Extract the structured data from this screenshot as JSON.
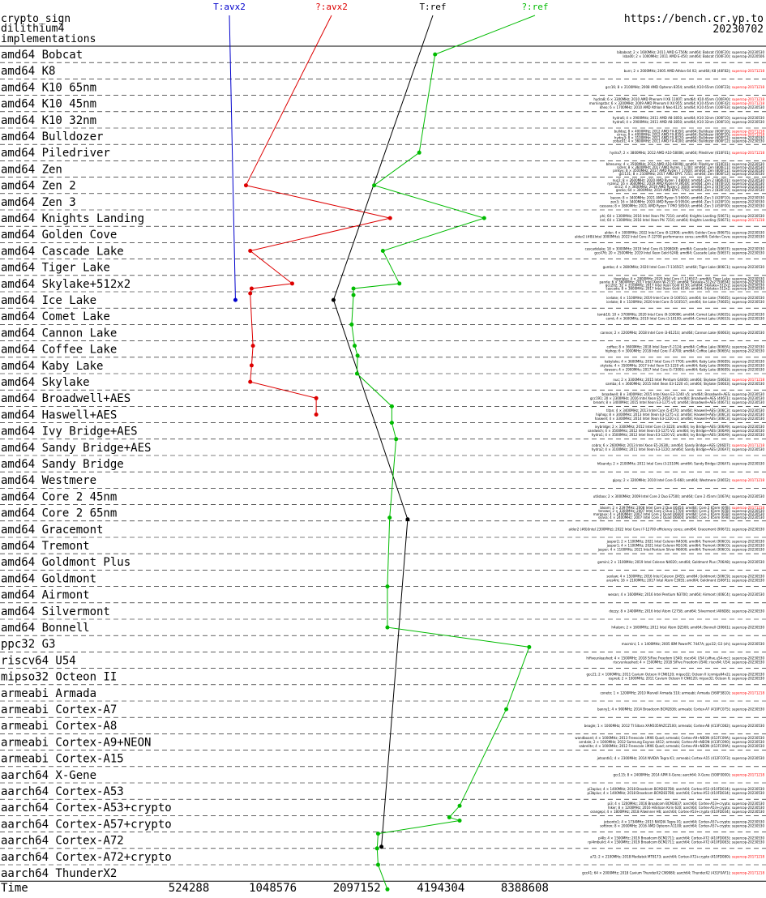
{
  "header": {
    "left_lines": [
      "crypto_sign",
      "dilithium4",
      "implementations"
    ],
    "right_lines": [
      "https://bench.cr.yp.to",
      "20230702"
    ]
  },
  "chart_data": {
    "type": "line",
    "xlabel": "Time",
    "x_scale": "log2",
    "x_ticks": [
      524288,
      1048576,
      2097152,
      4194304,
      8388608
    ],
    "x_tick_labels": [
      "524288",
      "1048576",
      "2097152",
      "4194304",
      "8388608"
    ],
    "categories": [
      "amd64 Bobcat",
      "amd64 K8",
      "amd64 K10 65nm",
      "amd64 K10 45nm",
      "amd64 K10 32nm",
      "amd64 Bulldozer",
      "amd64 Piledriver",
      "amd64 Zen",
      "amd64 Zen 2",
      "amd64 Zen 3",
      "amd64 Knights Landing",
      "amd64 Golden Cove",
      "amd64 Cascade Lake",
      "amd64 Tiger Lake",
      "amd64 Skylake+512x2",
      "amd64 Ice Lake",
      "amd64 Comet Lake",
      "amd64 Cannon Lake",
      "amd64 Coffee Lake",
      "amd64 Kaby Lake",
      "amd64 Skylake",
      "amd64 Broadwell+AES",
      "amd64 Haswell+AES",
      "amd64 Ivy Bridge+AES",
      "amd64 Sandy Bridge+AES",
      "amd64 Sandy Bridge",
      "amd64 Westmere",
      "amd64 Core 2 45nm",
      "amd64 Core 2 65nm",
      "amd64 Gracemont",
      "amd64 Tremont",
      "amd64 Goldmont Plus",
      "amd64 Goldmont",
      "amd64 Airmont",
      "amd64 Silvermont",
      "amd64 Bonnell",
      "ppc32 G3",
      "riscv64 U54",
      "mipso32 Octeon II",
      "armeabi Armada",
      "armeabi Cortex-A7",
      "armeabi Cortex-A8",
      "armeabi Cortex-A9+NEON",
      "armeabi Cortex-A15",
      "aarch64 X-Gene",
      "aarch64 Cortex-A53",
      "aarch64 Cortex-A53+crypto",
      "aarch64 Cortex-A57+crypto",
      "aarch64 Cortex-A72",
      "aarch64 Cortex-A72+crypto",
      "aarch64 ThunderX2"
    ],
    "series": [
      {
        "name": "T:avx2",
        "color": "#0000cc",
        "points": [
          {
            "row": 15,
            "x": 770000
          }
        ]
      },
      {
        "name": "?:avx2",
        "color": "#dd0000",
        "points": [
          {
            "row": 8,
            "x": 840000
          },
          {
            "row": 10,
            "x": 2760000
          },
          {
            "row": 12,
            "x": 870000
          },
          {
            "row": 14,
            "x": 1230000
          },
          {
            "row": 14.3,
            "x": 880000
          },
          {
            "row": 14.6,
            "x": 870000
          },
          {
            "row": 17.8,
            "x": 890000
          },
          {
            "row": 19,
            "x": 880000
          },
          {
            "row": 20,
            "x": 870000
          },
          {
            "row": 21,
            "x": 1500000
          },
          {
            "row": 22,
            "x": 1500000
          }
        ]
      },
      {
        "name": "T:ref",
        "color": "#000000",
        "points": [
          {
            "row": 15,
            "x": 1730000
          },
          {
            "row": 28.4,
            "x": 3190000
          },
          {
            "row": 48.4,
            "x": 2570000
          }
        ]
      },
      {
        "name": "?:ref",
        "color": "#00bb00",
        "points": [
          {
            "row": 0,
            "x": 4000000
          },
          {
            "row": 6,
            "x": 3510000
          },
          {
            "row": 8,
            "x": 2420000
          },
          {
            "row": 10,
            "x": 6000000
          },
          {
            "row": 12,
            "x": 2600000
          },
          {
            "row": 14,
            "x": 2980000
          },
          {
            "row": 14.3,
            "x": 2040000
          },
          {
            "row": 14.7,
            "x": 2040000
          },
          {
            "row": 16.5,
            "x": 2010000
          },
          {
            "row": 17.8,
            "x": 2060000
          },
          {
            "row": 18.4,
            "x": 2110000
          },
          {
            "row": 19.5,
            "x": 2100000
          },
          {
            "row": 21.5,
            "x": 2800000
          },
          {
            "row": 22.5,
            "x": 2800000
          },
          {
            "row": 23.5,
            "x": 2900000
          },
          {
            "row": 28.3,
            "x": 2750000
          },
          {
            "row": 32.5,
            "x": 2700000
          },
          {
            "row": 35,
            "x": 2700000
          },
          {
            "row": 36.2,
            "x": 8700000
          },
          {
            "row": 40,
            "x": 7200000
          },
          {
            "row": 45.9,
            "x": 4900000
          },
          {
            "row": 46.6,
            "x": 4500000
          },
          {
            "row": 46.8,
            "x": 4900000
          },
          {
            "row": 47.6,
            "x": 2500000
          },
          {
            "row": 48.5,
            "x": 2480000
          },
          {
            "row": 49.5,
            "x": 2500000
          },
          {
            "row": 51,
            "x": 2700000
          }
        ]
      }
    ]
  },
  "machines": [
    {
      "row": 0,
      "lines": [
        "bibabsat; 2 × 1600MHz; 2011 AMD G-T56N; amd64; Bobcat (500F20); supercop-20230530",
        "lsba00; 2 × 1000MHz; 2011 AMD E-450; amd64; Bobcat (500F20); supercop-20220506"
      ]
    },
    {
      "row": 1,
      "lines": [
        "burn; 2 × 2000MHz; 2005 AMD Athlon 64 X2; amd64; K8 (40F82); supercop-20171218"
      ]
    },
    {
      "row": 2,
      "lines": [
        "gcc16; 8 × 2100MHz; 2008 AMD Opteron 8354; amd64; K10 65nm (100F23); supercop-20171218"
      ]
    },
    {
      "row": 3,
      "lines": [
        "hydra8; 6 × 3300MHz; 2010 AMD Phenom II X6 1100T; amd64; K10 45nm (100FA0); supercop-20171218",
        "morningstar; 6 × 3200MHz; 2009 AMD Phenom II X4 955; amd64; K10 45nm (100F42); supercop-20171218",
        "kheo; 6 × 1700MHz; 2010 AMD Athlon II Neo K125; amd64; K10 45nm (100F63); supercop-20230530"
      ]
    },
    {
      "row": 4,
      "lines": [
        "hydra6; 4 × 2900MHz; 2011 AMD A8-3850; amd64; K10 32nm (300F10); supercop-20230530",
        "hydra6; 4 × 2900MHz; 2011 AMD A8-3850; amd64; K10 32nm (300F10); supercop-20230530"
      ]
    },
    {
      "row": 5,
      "lines": [
        "bulldoz; 8 × 4000MHz; 2012 AMD FX-8350; amd64; Bulldozer (600F20); supercop-20171218",
        "cirrus; 8 × 4000MHz; 2012 AMD FX-8350; amd64; Bulldozer (600F20); supercop-20171218",
        "hydra3; 8 × 3100MHz; 2011 AMD FX-8120; amd64; Bulldozer (600F12); supercop-20230530",
        "zotac01; 4 × 3600MHz; 2011 AMD FX-4100; amd64; Bulldozer (600F12); supercop-20230530"
      ]
    },
    {
      "row": 6,
      "lines": [
        "hydra7; 2 × 3800MHz; 2012 AMD A10-5800K; amd64; Piledriver (610F01); supercop-20171218"
      ]
    },
    {
      "row": 7,
      "lines": [
        "bitesurey; 4 × 3500MHz; 2012 AMD A10-6800K; amd64; Piledriver (610F01); supercop-20230530",
        "ryzen; 8 × 3600MHz; 2017 AMD Ryzen 7 1700; amd64; Zen (800F11); supercop-20230530",
        "pinkyy; 8 × 3500MHz; 2017 AMD Ryzen 7 1700X; amd64; Zen (800F11); supercop-20230530",
        "gcc131; 8 × 2100MHz; 2017 AMD EPYC 7251; amd64; Zen (800F12); supercop-20230530"
      ]
    },
    {
      "row": 8,
      "lines": [
        "nuc2; 8 × 2600MHz; 2020 AMD Ryzen 7 4800U; amd64; Zen 2 (860F01); supercop-20230530",
        "ryzen2; 16 × 3600MHz; 2019 AMD Ryzen 9 3950X; amd64; Zen 2 (870F10); supercop-20230530",
        "sicc2; 4 × 3600MHz; 2019 AMD Ryzen 5 3600; amd64; Zen 2 (870F10); supercop-20230530",
        "gecko; 64 × 3000MHz; 2019 AMD EPYC 7702; amd64; Zen 2 (830F10); supercop-20230530"
      ]
    },
    {
      "row": 9,
      "lines": [
        "bacon; 8 × 3400MHz; 2021 AMD Ryzen 5 5600X; amd64; Zen 3 (A20F10); supercop-20230530",
        "zen3; 16 × 3400MHz; 2020 AMD Ryzen 9 5950X; amd64; Zen 3 (A20F10); supercop-20230530",
        "cassava; 8 × 3800MHz; 2021 AMD Ryzen 7 PRO 5850U; amd64; Zen 3 (A50F00); supercop-20230530"
      ]
    },
    {
      "row": 10,
      "lines": [
        "phi; 64 × 1300MHz; 2016 Intel Xeon Phi 7210; amd64; Knights Landing (50671); supercop-20230530",
        "knl; 64 × 1300MHz; 2016 Intel Xeon Phi 7210; amd64; Knights Landing (50671); supercop-20171218"
      ]
    },
    {
      "row": 11,
      "lines": [
        "alder; 4 × 3000MHz; 2022 Intel Core i9-12900; amd64; Golden Cove (90675); supercop-20230530",
        "alder2 (#8)(Intel 3000MHz); 2022 Intel Core i7-12700 performance cores; amd64; Golden Cove; supercop-20230530"
      ]
    },
    {
      "row": 12,
      "lines": [
        "cascadelake; 18 × 3000MHz; 2019 Intel Core i9-10980XE; amd64; Cascade Lake (50657); supercop-20230530",
        "gcc476; 20 × 2500MHz; 2019 Intel Xeon Gold 6248; amd64; Cascade Lake (50657); supercop-20230530"
      ]
    },
    {
      "row": 13,
      "lines": [
        "gumbo; 4 × 2800MHz; 2020 Intel Core i7-1165G7; amd64; Tiger Lake (806C1); supercop-20230530"
      ]
    },
    {
      "row": 14,
      "lines": [
        "tigerlake; 4 × 2800MHz; 2020 Intel Core i7-1165G7; amd64; Tiger Lake; supercop-20230530",
        "panda; 6 × 3600MHz; 2017 Intel Xeon W-2133; amd64; Skylake+512x2 (50654); supercop-20230530",
        "gcc202; 32 × 2100MHz; 2017 Intel Xeon Gold 6130; amd64; Skylake+512x2; supercop-20230530",
        "cascade; 8 × 3600MHz; 2017 Intel Xeon Gold 6144; amd64; Skylake+512x2; supercop-20230530"
      ]
    },
    {
      "row": 15,
      "lines": [
        "icelake; 4 × 1100MHz; 2019 Intel Core i3-1005G1; amd64; Ice Lake (706E5); supercop-20230530",
        "icelake; 8 × 1100MHz; 2020 Intel Core i5-1035G7; amd64; Ice Lake (706E5); supercop-20230530"
      ]
    },
    {
      "row": 16,
      "lines": [
        "tomb10; 10 × 3700MHz; 2020 Intel Core i9-10900K; amd64; Comet Lake (A0655); supercop-20230530",
        "comt; 4 × 3600MHz; 2019 Intel Core i3-10100; amd64; Comet Lake (A0653); supercop-20230530"
      ]
    },
    {
      "row": 17,
      "lines": [
        "cannon; 2 × 2200MHz; 2018 Intel Core i3-8121U; amd64; Cannon Lake (60663); supercop-20230530"
      ]
    },
    {
      "row": 18,
      "lines": [
        "coffee; 8 × 3600MHz; 2018 Intel Xeon E-2124; amd64; Coffee Lake (906EA); supercop-20230530",
        "hiphop; 6 × 3000MHz; 2018 Intel Core i7-8700; amd64; Coffee Lake (906EA); supercop-20230530"
      ]
    },
    {
      "row": 19,
      "lines": [
        "kabylake; 4 × 3600MHz; 2017 Intel Core i7-7700; amd64; Kaby Lake (906E9); supercop-20230530",
        "skylake; 4 × 3500MHz; 2017 Intel Xeon E3-1220 v6; amd64; Kaby Lake (906E9); supercop-20230530",
        "dawson; 4 × 2900MHz; 2017 Intel Core i5-7300U; amd64; Kaby Lake (806E9); supercop-20230530"
      ]
    },
    {
      "row": 20,
      "lines": [
        "nuc; 2 × 3300MHz; 2015 Intel Pentium G4400; amd64; Skylake (506E3); supercop-20171218",
        "samba; 4 × 3600MHz; 2015 Intel Xeon E3-1220 v5; amd64; Skylake (506E3); supercop-20230530"
      ]
    },
    {
      "row": 21,
      "lines": [
        "broadwell; 8 × 3400MHz; 2015 Intel Xeon E3-1240 v5; amd64; Broadwell+AES; supercop-20230530",
        "gcc191; 20 × 2300MHz; 2016 Intel Xeon E5-2650 v4; amd64; Broadwell+AES (406F1); supercop-20230530",
        "bream; 8 × 3400MHz; 2015 Intel Xeon E3-1275 v4; amd64; Broadwell+AES (40671); supercop-20230530"
      ]
    },
    {
      "row": 22,
      "lines": [
        "titan; 4 × 3400MHz; 2013 Intel Core i5-4570; amd64; Haswell+AES (306C3); supercop-20230530",
        "hiphop; 8 × 3400MHz; 2013 Intel Xeon E3-1275 v3; amd64; Haswell+AES (306C3); supercop-20230530",
        "haswell; 4 × 3300MHz; 2014 Intel Xeon E3-1220 v3; amd64; Haswell+AES (306C3); supercop-20230530"
      ]
    },
    {
      "row": 23,
      "lines": [
        "ivybridge; 2 × 3300MHz; 2012 Intel Core i3-3220; amd64; Ivy Bridge+AES (306A9); supercop-20230530",
        "sandwich; 4 × 3500MHz; 2012 Intel Xeon E3-1275 V2; amd64; Ivy Bridge+AES (306A9); supercop-20230530",
        "hydra1; 4 × 3500MHz; 2012 Intel Xeon E3-1220 V2; amd64; Ivy Bridge+AES (306A9); supercop-20230530"
      ]
    },
    {
      "row": 24,
      "lines": [
        "cobra; 6 × 2600MHz; 2013 Intel Xeon E5-2630L; amd64; Sandy Bridge+AES (206D7); supercop-20171218",
        "hydra2; 4 × 3100MHz; 2011 Intel Xeon E3-1220; amd64; Sandy Bridge+AES (206A7); supercop-20230530"
      ]
    },
    {
      "row": 25,
      "lines": [
        "h6sandy; 2 × 2100MHz; 2011 Intel Core i3-2310M; amd64; Sandy Bridge (206A7); supercop-20230530"
      ]
    },
    {
      "row": 26,
      "lines": [
        "gipsy; 2 × 3200MHz; 2010 Intel Core i5-660; amd64; Westmere (20652); supercop-20171218"
      ]
    },
    {
      "row": 27,
      "lines": [
        "utilsbox; 2 × 3000MHz; 2009 Intel Core 2 Duo E7500; amd64; Core 2 45nm (1067A); supercop-20230530"
      ]
    },
    {
      "row": 28,
      "lines": [
        "bloom; 2 × 2397MHz; 2008 Intel Core 2 Duo E6450; amd64; Core 2 65nm (6FB); supercop-20171218",
        "tenswe; 2 × 3300MHz; 2007 Intel Core 2 Duo E7700; amd64; Core 2 65nm (6FB); supercop-20230530",
        "margaux; 4 × 2400MHz; 2007 Intel Core 2 Quad Q6600; amd64; Core 2 65nm (6FB); supercop-20230530",
        "sylvia; 4 × 2400MHz; 2007 Intel Core 2 Quad Q6600; amd64; Core 2 65nm (6FB); supercop-20230530"
      ]
    },
    {
      "row": 29,
      "lines": [
        "alder2 (#8)(Intel 2300MHz); 2022 Intel Core i7-12700 efficiency cores; amd64; Gracemont (90672); supercop-20230530"
      ]
    },
    {
      "row": 30,
      "lines": [
        "jasper2; 2 × 1100MHz; 2021 Intel Celeron N4500; amd64; Tremont (906C0); supercop-20230530",
        "jasper1; 4 × 1100MHz; 2021 Intel Celeron N5100; amd64; Tremont (906C0); supercop-20230530",
        "jasper; 4 × 1100MHz; 2021 Intel Pentium Silver N6000; amd64; Tremont (906C0); supercop-20230530"
      ]
    },
    {
      "row": 31,
      "lines": [
        "gemini; 2 × 1100MHz; 2019 Intel Celeron N4020; amd64; Goldmont Plus (706A8); supercop-20230530"
      ]
    },
    {
      "row": 32,
      "lines": [
        "sexlaw; 4 × 1500MHz; 2016 Intel Celeron J3455; amd64; Goldmont (506C9); supercop-20230530",
        "ares4m; 16 × 2100MHz; 2017 Intel Atom C3955; amd64; Goldmont (506F1); supercop-20230530"
      ]
    },
    {
      "row": 33,
      "lines": [
        "wesan; 4 × 1600MHz; 2016 Intel Pentium N3700; amd64; Airmont (406C4); supercop-20230530"
      ]
    },
    {
      "row": 34,
      "lines": [
        "dozzy; 8 × 2400MHz; 2016 Intel Atom C2758; amd64; Silvermont (406D8); supercop-20230530"
      ]
    },
    {
      "row": 35,
      "lines": [
        "h4atom; 2 × 1600MHz; 2011 Intel Atom D2500; amd64; Bonnell (30661); supercop-20230530"
      ]
    },
    {
      "row": 36,
      "lines": [
        "macmini; 1 × 1400MHz; 2005 IBM PowerPC 7447A; ppc32; G3 (sh); supercop-20230530"
      ]
    },
    {
      "row": 37,
      "lines": [
        "hifiveunleashed; 4 × 1500MHz; 2018 SiFive Freedom U540; riscv64; U54 (sifive,u54-mc); supercop-20230530",
        "riscvunleashed; 4 × 1500MHz; 2018 SiFive Freedom U540; riscv64; U54; supercop-20230530"
      ]
    },
    {
      "row": 38,
      "lines": [
        "gcc21; 2 × 1000MHz; 2011 Cavium Octeon II CN6120; mipso32; Octeon II (cnmips64v2); supercop-20230530",
        "ospred; 2 × 1000MHz; 2011 Cavium Octeon II CN6120; mipso32; Octeon II; supercop-20230530"
      ]
    },
    {
      "row": 39,
      "lines": [
        "conetx; 1 × 1200MHz; 2010 Marvell Armada 510; armeabi; Armada (560F5810); supercop-20171218"
      ]
    },
    {
      "row": 40,
      "lines": [
        "banny1; 4 × 900MHz; 2014 Broadcom BCM2836; armeabi; Cortex-A7 (410FC075); supercop-20230530"
      ]
    },
    {
      "row": 41,
      "lines": [
        "beagle; 1 × 1000MHz; 2012 TI Sitara XAM3359AZCZ100; armeabi; Cortex-A8 (413FC082); supercop-20230530"
      ]
    },
    {
      "row": 42,
      "lines": [
        "wandboard; 4 × 1000MHz; 2013 Freescale i.MX6 Quad; armeabi; Cortex-A9+NEON (412FC09A); supercop-20230530",
        "arndale; 2 × 1000MHz; 2012 Samsung Exynos 4412; armeabi; Cortex-A9+NEON (413FC090); supercop-20230530",
        "sabrelite; 4 × 1000MHz; 2012 Freescale i.MX6 Quad; armeabi; Cortex-A9+NEON (412FC09A); supercop-20230530"
      ]
    },
    {
      "row": 43,
      "lines": [
        "jetsontk1; 4 × 2300MHz; 2014 NVIDIA Tegra K1; armeabi; Cortex-A15 (412FC0F3); supercop-20230530"
      ]
    },
    {
      "row": 44,
      "lines": [
        "gcc115; 8 × 2400MHz; 2014 APM X-Gene; aarch64; X-Gene (500F0000); supercop-20171218"
      ]
    },
    {
      "row": 45,
      "lines": [
        "pi3aplus; 4 × 1400MHz; 2018 Broadcom BCM2837B0; aarch64; Cortex-A53 (410FD034); supercop-20230530",
        "pi3bplus; 4 × 1400MHz; 2018 Broadcom BCM2837B0; aarch64; Cortex-A53 (410FD034); supercop-20230530"
      ]
    },
    {
      "row": 46,
      "lines": [
        "pi3; 4 × 1200MHz; 2016 Broadcom BCM2837; aarch64; Cortex-A53+crypto; supercop-20230530",
        "hiker; 8 × 1200MHz; 2016 HiSilicon Kirin 620; aarch64; Cortex-A53+crypto; supercop-20230530",
        "orangepi; 4 × 1800MHz; 2018 Allwinner H6; aarch64; Cortex-A53+crypto (410FD034); supercop-20230530"
      ]
    },
    {
      "row": 47,
      "lines": [
        "jetsontx1; 4 × 1734MHz; 2015 NVIDIA Tegra X1; aarch64; Cortex-A57+crypto; supercop-20230530",
        "softiron; 8 × 2000MHz; 2016 AMD Opteron A1100; aarch64; Cortex-A57+crypto; supercop-20230530"
      ]
    },
    {
      "row": 48,
      "lines": [
        "pi4b; 4 × 1500MHz; 2019 Broadcom BCM2711; aarch64; Cortex-A72 (410FD083); supercop-20230530",
        "rpi4mbuild; 4 × 1500MHz; 2019 Broadcom BCM2711; aarch64; Cortex-A72 (410FD083); supercop-20230530"
      ]
    },
    {
      "row": 49,
      "lines": [
        "a72; 2 × 2100MHz; 2018 Mediatek MT8173; aarch64; Cortex-A72+crypto (410FD080); supercop-20171218"
      ]
    },
    {
      "row": 50,
      "lines": [
        "gcc41; 64 × 2000MHz; 2018 Cavium ThunderX2 CN9980; aarch64; ThunderX2 (431F0AF1); supercop-20171218"
      ]
    }
  ]
}
